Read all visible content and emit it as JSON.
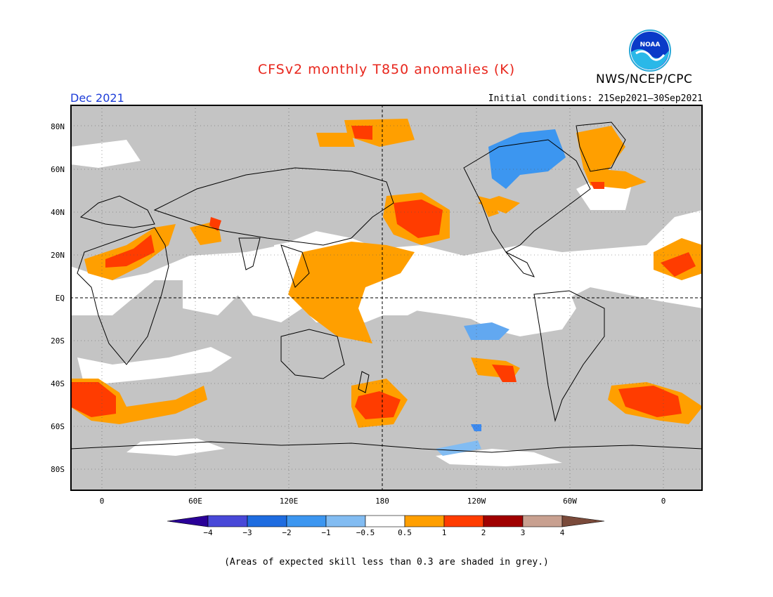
{
  "header": {
    "title": "CFSv2 monthly T850 anomalies (K)",
    "organization": "NWS/NCEP/CPC",
    "month": "Dec 2021",
    "initial_conditions": "Initial conditions: 21Sep2021–30Sep2021",
    "logo_text": "NOAA"
  },
  "map": {
    "lat_labels": [
      "80N",
      "60N",
      "40N",
      "20N",
      "EQ",
      "20S",
      "40S",
      "60S",
      "80S"
    ],
    "lon_labels": [
      "0",
      "60E",
      "120E",
      "180",
      "120W",
      "60W",
      "0"
    ]
  },
  "colorbar": {
    "labels": [
      "−4",
      "−3",
      "−2",
      "−1",
      "−0.5",
      "0.5",
      "1",
      "2",
      "3",
      "4"
    ],
    "colors": [
      "#2a0098",
      "#4848d8",
      "#1e6ce0",
      "#3c96f0",
      "#82bcf2",
      "#ffffff",
      "#ff9f00",
      "#ff3c00",
      "#a00000",
      "#c8a090",
      "#7a4a3a"
    ]
  },
  "footer": {
    "note": "(Areas of expected skill less than 0.3 are shaded in grey.)"
  },
  "legend_colors": {
    "grey": "#c4c4c4",
    "orange": "#ff9f00",
    "red": "#ff3c00",
    "light_blue": "#62a8f0",
    "blue": "#3c8af0"
  }
}
